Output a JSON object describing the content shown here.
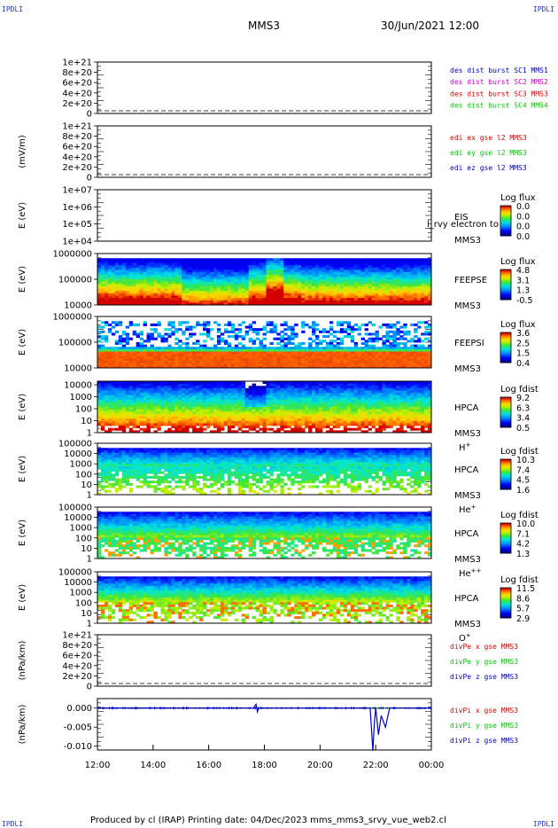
{
  "header": {
    "corner_tl": "IPDLI",
    "corner_tr": "IPDLI",
    "corner_bl": "IPDLI",
    "corner_br": "IPDLI",
    "spacecraft": "MMS3",
    "datetime": "30/Jun/2021 12:00"
  },
  "footer": {
    "text": "Produced by cl (IRAP)    Printing date: 04/Dec/2023    mms_mms3_srvy_vue_web2.cl"
  },
  "colors": {
    "blue": "#0000cc",
    "magenta": "#cc00cc",
    "red": "#dd0000",
    "green": "#00cc00"
  },
  "chart_data": [
    {
      "type": "line",
      "panel": "des_dist",
      "ylabel": "",
      "ytick_labels": [
        "1e+21",
        "8e+20",
        "6e+20",
        "4e+20",
        "2e+20",
        "0"
      ],
      "ylim": [
        0,
        1e+21
      ],
      "legend": [
        {
          "text": "des dist burst SC1 MMS1",
          "color": "#0000cc"
        },
        {
          "text": "des dist burst SC2 MMS2",
          "color": "#cc00cc"
        },
        {
          "text": "des dist burst SC3 MMS3",
          "color": "#dd0000"
        },
        {
          "text": "des dist burst SC4 MMS4",
          "color": "#00cc00"
        }
      ],
      "series": [],
      "zero_line": true
    },
    {
      "type": "line",
      "panel": "edi",
      "ylabel": "(mV/m)",
      "ytick_labels": [
        "1e+21",
        "8e+20",
        "6e+20",
        "4e+20",
        "2e+20",
        "0"
      ],
      "ylim": [
        0,
        1e+21
      ],
      "legend": [
        {
          "text": "edi ex gse l2 MMS3",
          "color": "#dd0000"
        },
        {
          "text": "edi ey gse l2 MMS3",
          "color": "#00cc00"
        },
        {
          "text": "edi ez gse l2 MMS3",
          "color": "#0000cc"
        }
      ],
      "series": [],
      "zero_line": true
    },
    {
      "type": "heatmap",
      "panel": "eis",
      "ylabel": "E (eV)",
      "ytick_labels": [
        "1e+07",
        "1e+06",
        "1e+05",
        "1e+04"
      ],
      "ylog": [
        4,
        7
      ],
      "instrument": "EIS",
      "overlay_text": "l_rvy electron to",
      "sc_label": "MMS3",
      "species": "",
      "cbar_title": "Log flux",
      "cbar_ticks": [
        "0.0",
        "0.0",
        "0.0",
        "0.0"
      ],
      "empty": true
    },
    {
      "type": "heatmap",
      "panel": "feepse",
      "ylabel": "E (eV)",
      "ytick_labels": [
        "1000000",
        "100000",
        "10000"
      ],
      "ylog": [
        4,
        6
      ],
      "instrument": "FEEPSE",
      "sc_label": "MMS3",
      "species": "",
      "cbar_title": "Log flux",
      "cbar_ticks": [
        "4.8",
        "3.1",
        "1.3",
        "-0.5"
      ],
      "top_gap": 0.1,
      "bands": [
        0.5,
        0.75
      ],
      "variant": "feepse"
    },
    {
      "type": "heatmap",
      "panel": "feepsi",
      "ylabel": "E (eV)",
      "ytick_labels": [
        "1000000",
        "100000",
        "10000"
      ],
      "ylog": [
        4,
        6
      ],
      "instrument": "FEEPSI",
      "sc_label": "MMS3",
      "species": "",
      "cbar_title": "Log flux",
      "cbar_ticks": [
        "3.6",
        "2.5",
        "1.5",
        "0.4"
      ],
      "top_gap": 0.1,
      "variant": "feepsi"
    },
    {
      "type": "heatmap",
      "panel": "hpca_h",
      "ylabel": "E (eV)",
      "ytick_labels": [
        "10000",
        "1000",
        "100",
        "10",
        "1"
      ],
      "ylog": [
        0,
        4.3
      ],
      "instrument": "HPCA",
      "sc_label": "MMS3",
      "species": "H+",
      "cbar_title": "Log fdist",
      "cbar_ticks": [
        "9.2",
        "6.3",
        "3.4",
        "0.5"
      ],
      "top_gap": 0.0,
      "variant": "h"
    },
    {
      "type": "heatmap",
      "panel": "hpca_he",
      "ylabel": "E (eV)",
      "ytick_labels": [
        "100000",
        "10000",
        "1000",
        "100",
        "10",
        "1"
      ],
      "ylog": [
        0,
        5
      ],
      "instrument": "HPCA",
      "sc_label": "MMS3",
      "species": "He+",
      "cbar_title": "Log fdist",
      "cbar_ticks": [
        "10.3",
        "7.4",
        "4.5",
        "1.6"
      ],
      "top_gap": 0.1,
      "variant": "he"
    },
    {
      "type": "heatmap",
      "panel": "hpca_hepp",
      "ylabel": "E (eV)",
      "ytick_labels": [
        "100000",
        "10000",
        "1000",
        "100",
        "10",
        "1"
      ],
      "ylog": [
        0,
        5
      ],
      "instrument": "HPCA",
      "sc_label": "MMS3",
      "species": "He++",
      "cbar_title": "Log fdist",
      "cbar_ticks": [
        "10.0",
        "7.1",
        "4.2",
        "1.3"
      ],
      "top_gap": 0.1,
      "variant": "hepp"
    },
    {
      "type": "heatmap",
      "panel": "hpca_o",
      "ylabel": "E (eV)",
      "ytick_labels": [
        "100000",
        "10000",
        "1000",
        "100",
        "10",
        "1"
      ],
      "ylog": [
        0,
        5
      ],
      "instrument": "HPCA",
      "sc_label": "MMS3",
      "species": "O+",
      "cbar_title": "Log fdist",
      "cbar_ticks": [
        "11.5",
        "8.6",
        "5.7",
        "2.9"
      ],
      "top_gap": 0.1,
      "variant": "o"
    },
    {
      "type": "line",
      "panel": "divpe",
      "ylabel": "(nPa/km)",
      "ytick_labels": [
        "1e+21",
        "8e+20",
        "6e+20",
        "4e+20",
        "2e+20",
        "0"
      ],
      "ylim": [
        0,
        1e+21
      ],
      "legend": [
        {
          "text": "divPe x gse MMS3",
          "color": "#dd0000"
        },
        {
          "text": "divPe y gse MMS3",
          "color": "#00cc00"
        },
        {
          "text": "divPe z gse MMS3",
          "color": "#0000cc"
        }
      ],
      "series": [],
      "zero_line": true
    },
    {
      "type": "line",
      "panel": "divpi",
      "ylabel": "(nPa/km)",
      "ytick_labels": [
        "0.000",
        "-0.005",
        "-0.010"
      ],
      "ylim": [
        -0.011,
        0.0025
      ],
      "legend": [
        {
          "text": "divPi x gse MMS3",
          "color": "#dd0000"
        },
        {
          "text": "divPi y gse MMS3",
          "color": "#00cc00"
        },
        {
          "text": "divPi z gse MMS3",
          "color": "#0000cc"
        }
      ],
      "series": [
        {
          "name": "divPi x gse MMS3",
          "color": "#dd0000",
          "x": [
            12,
            24
          ],
          "y": [
            0.0,
            0.0
          ]
        },
        {
          "name": "divPi y gse MMS3",
          "color": "#00cc00",
          "x": [
            12,
            24
          ],
          "y": [
            0.0,
            0.0
          ]
        },
        {
          "name": "divPi z gse MMS3",
          "color": "#0000cc",
          "x": [
            12.0,
            13.0,
            14.0,
            15.0,
            16.0,
            17.0,
            17.6,
            17.7,
            17.75,
            17.8,
            18.0,
            19.0,
            20.0,
            21.0,
            21.8,
            21.9,
            21.95,
            22.0,
            22.1,
            22.2,
            22.35,
            22.5,
            23.0,
            24.0
          ],
          "y": [
            0.0,
            0.0,
            0.0,
            0.0,
            0.0,
            0.0,
            0.0,
            0.001,
            -0.001,
            0.0,
            0.0,
            0.0,
            0.0,
            0.0,
            0.0,
            -0.0112,
            -0.004,
            0.0,
            -0.007,
            -0.002,
            -0.005,
            0.0,
            0.0,
            0.0
          ]
        }
      ],
      "zero_line": false
    }
  ],
  "x_axis": {
    "ticks": [
      "12:00",
      "14:00",
      "16:00",
      "18:00",
      "20:00",
      "22:00",
      "00:00"
    ],
    "range_hours": [
      12,
      24
    ]
  }
}
